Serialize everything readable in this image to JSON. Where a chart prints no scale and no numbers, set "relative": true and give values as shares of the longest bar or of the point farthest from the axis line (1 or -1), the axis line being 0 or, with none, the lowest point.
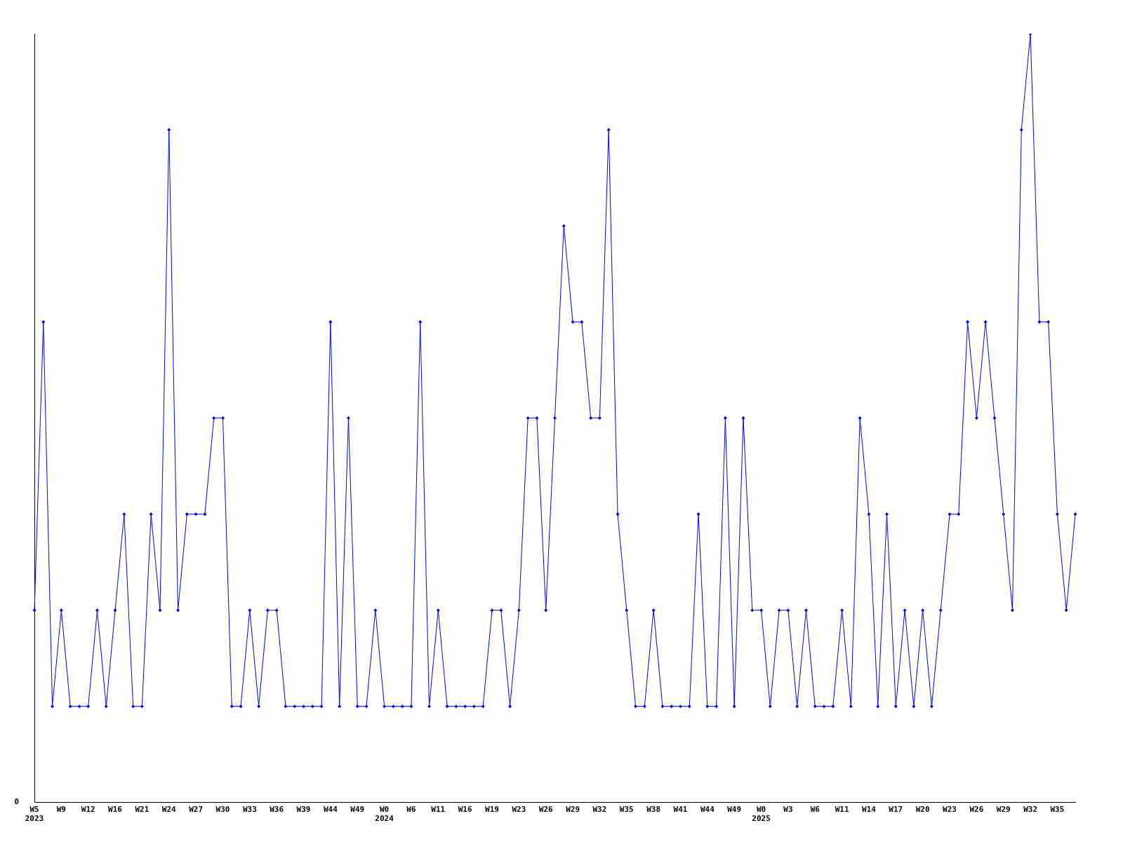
{
  "chart_data": {
    "type": "line",
    "relative": true,
    "annotations": [
      "0"
    ],
    "grid": false,
    "legend": false,
    "marker": "diamond",
    "line_style": "solid",
    "categories": [
      "W5\n2023",
      null,
      null,
      "W9",
      null,
      null,
      "W12",
      null,
      null,
      "W16",
      null,
      null,
      "W21",
      null,
      null,
      "W24",
      null,
      null,
      "W27",
      null,
      null,
      "W30",
      null,
      null,
      "W33",
      null,
      null,
      "W36",
      null,
      null,
      "W39",
      null,
      null,
      "W44",
      null,
      null,
      "W49",
      null,
      null,
      "W0\n2024",
      null,
      null,
      "W6",
      null,
      null,
      "W11",
      null,
      null,
      "W16",
      null,
      null,
      "W19",
      null,
      null,
      "W23",
      null,
      null,
      "W26",
      null,
      null,
      "W29",
      null,
      null,
      "W32",
      null,
      null,
      "W35",
      null,
      null,
      "W38",
      null,
      null,
      "W41",
      null,
      null,
      "W44",
      null,
      null,
      "W49",
      null,
      null,
      "W0\n2025",
      null,
      null,
      "W3",
      null,
      null,
      "W6",
      null,
      null,
      "W11",
      null,
      null,
      "W14",
      null,
      null,
      "W17",
      null,
      null,
      "W20",
      null,
      null,
      "W23",
      null,
      null,
      "W26",
      null,
      null,
      "W29",
      null,
      null,
      "W32",
      null,
      null,
      "W35",
      null,
      null
    ],
    "series": [
      {
        "color": "#0000ff",
        "values": [
          0.25,
          0.625,
          0.125,
          0.25,
          0.125,
          0.125,
          0.125,
          0.25,
          0.125,
          0.25,
          0.375,
          0.125,
          0.125,
          0.375,
          0.25,
          0.875,
          0.25,
          0.375,
          0.375,
          0.375,
          0.5,
          0.5,
          0.125,
          0.125,
          0.25,
          0.125,
          0.25,
          0.25,
          0.125,
          0.125,
          0.125,
          0.125,
          0.125,
          0.625,
          0.125,
          0.5,
          0.125,
          0.125,
          0.25,
          0.125,
          0.125,
          0.125,
          0.125,
          0.625,
          0.125,
          0.25,
          0.125,
          0.125,
          0.125,
          0.125,
          0.125,
          0.25,
          0.25,
          0.125,
          0.25,
          0.5,
          0.5,
          0.25,
          0.5,
          0.75,
          0.625,
          0.625,
          0.5,
          0.5,
          0.875,
          0.375,
          0.25,
          0.125,
          0.125,
          0.25,
          0.125,
          0.125,
          0.125,
          0.125,
          0.375,
          0.125,
          0.125,
          0.5,
          0.125,
          0.5,
          0.25,
          0.25,
          0.125,
          0.25,
          0.25,
          0.125,
          0.25,
          0.125,
          0.125,
          0.125,
          0.25,
          0.125,
          0.5,
          0.375,
          0.125,
          0.375,
          0.125,
          0.25,
          0.125,
          0.25,
          0.125,
          0.25,
          0.375,
          0.375,
          0.625,
          0.5,
          0.625,
          0.5,
          0.375,
          0.25,
          0.875,
          1,
          0.625,
          0.625,
          0.375,
          0.25,
          0.375
        ]
      }
    ]
  }
}
